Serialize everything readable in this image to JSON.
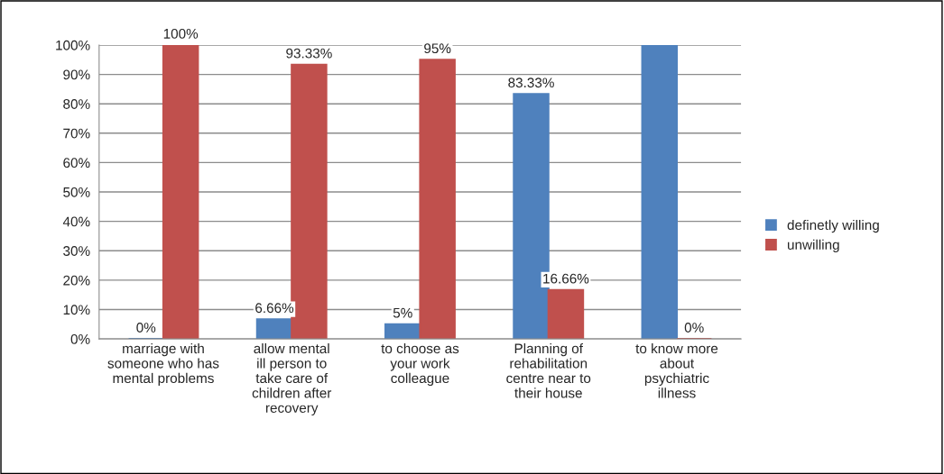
{
  "chart_data": {
    "type": "bar",
    "categories": [
      "marriage with someone who has mental problems",
      "allow mental ill person to take care of children after recovery",
      "to choose as your work colleague",
      "Planning of rehabilitation centre near to their house",
      "to know more about psychiatric illness"
    ],
    "series": [
      {
        "name": "definetly willing",
        "color": "#4f81bd",
        "values": [
          0,
          6.66,
          5,
          83.33,
          100
        ],
        "value_labels": [
          "0%",
          "6.66%",
          "5%",
          "83.33%",
          null
        ]
      },
      {
        "name": "unwilling",
        "color": "#c0504d",
        "values": [
          100,
          93.33,
          95,
          16.66,
          0
        ],
        "value_labels": [
          "100%",
          "93.33%",
          "95%",
          "16.66%",
          "0%"
        ]
      }
    ],
    "ylim": [
      0,
      100
    ],
    "yticks": [
      {
        "value": 0,
        "label": "0%"
      },
      {
        "value": 10,
        "label": "10%"
      },
      {
        "value": 20,
        "label": "20%"
      },
      {
        "value": 30,
        "label": "30%"
      },
      {
        "value": 40,
        "label": "40%"
      },
      {
        "value": 50,
        "label": "50%"
      },
      {
        "value": 60,
        "label": "60%"
      },
      {
        "value": 70,
        "label": "70%"
      },
      {
        "value": 80,
        "label": "80%"
      },
      {
        "value": 90,
        "label": "90%"
      },
      {
        "value": 100,
        "label": "100%"
      }
    ],
    "grid": "y",
    "legend": "right"
  }
}
